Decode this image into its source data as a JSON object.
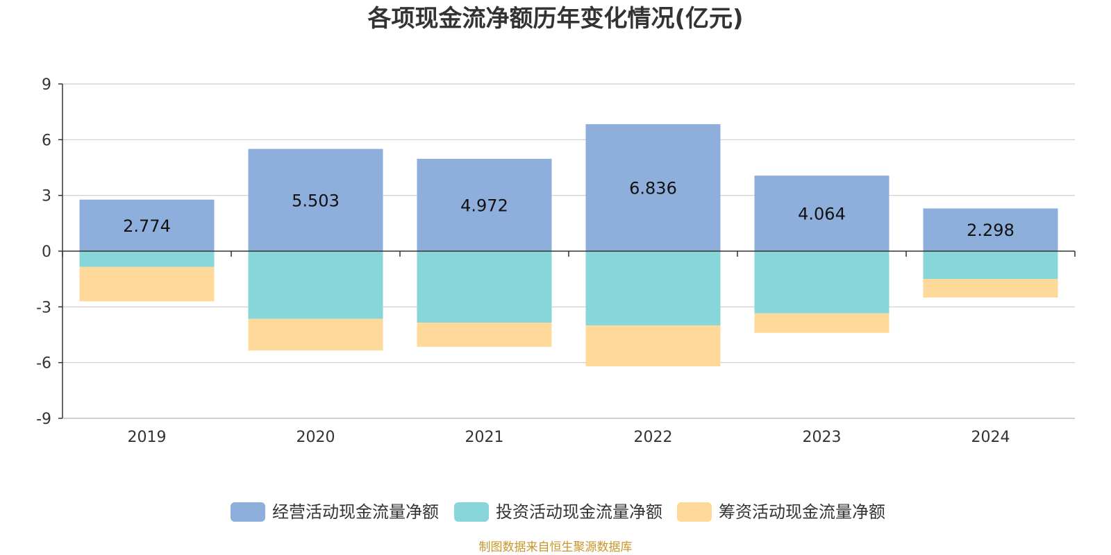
{
  "chart_data": {
    "type": "bar",
    "stacked": true,
    "title": "各项现金流净额历年变化情况(亿元)",
    "categories": [
      "2019",
      "2020",
      "2021",
      "2022",
      "2023",
      "2024"
    ],
    "series": [
      {
        "name": "经营活动现金流量净额",
        "color": "#8eaedb",
        "values": [
          2.774,
          5.503,
          4.972,
          6.836,
          4.064,
          2.298
        ]
      },
      {
        "name": "投资活动现金流量净额",
        "color": "#88d6d9",
        "values": [
          -0.85,
          -3.65,
          -3.85,
          -4.0,
          -3.35,
          -1.5
        ]
      },
      {
        "name": "筹资活动现金流量净额",
        "color": "#ffd999",
        "values": [
          -1.85,
          -1.7,
          -1.3,
          -2.2,
          -1.05,
          -1.0
        ]
      }
    ],
    "data_labels": [
      "2.774",
      "5.503",
      "4.972",
      "6.836",
      "4.064",
      "2.298"
    ],
    "yticks": [
      "9",
      "6",
      "3",
      "0",
      "-3",
      "-6",
      "-9"
    ],
    "ylim": [
      -9,
      9
    ],
    "grid": true,
    "legend_position": "bottom",
    "source": "制图数据来自恒生聚源数据库"
  }
}
